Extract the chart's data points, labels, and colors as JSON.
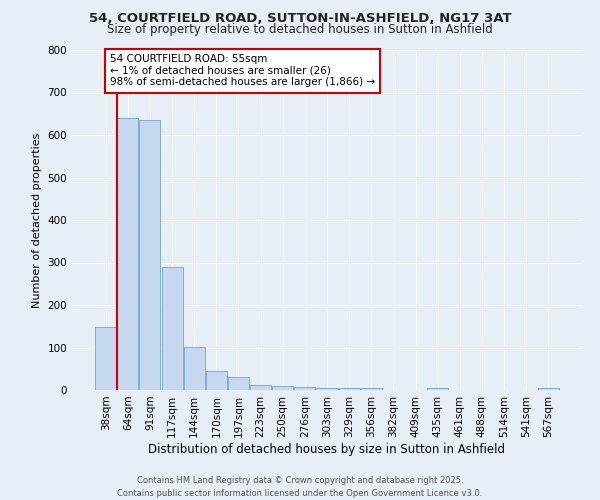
{
  "title1": "54, COURTFIELD ROAD, SUTTON-IN-ASHFIELD, NG17 3AT",
  "title2": "Size of property relative to detached houses in Sutton in Ashfield",
  "xlabel": "Distribution of detached houses by size in Sutton in Ashfield",
  "ylabel": "Number of detached properties",
  "categories": [
    "38sqm",
    "64sqm",
    "91sqm",
    "117sqm",
    "144sqm",
    "170sqm",
    "197sqm",
    "223sqm",
    "250sqm",
    "276sqm",
    "303sqm",
    "329sqm",
    "356sqm",
    "382sqm",
    "409sqm",
    "435sqm",
    "461sqm",
    "488sqm",
    "514sqm",
    "541sqm",
    "567sqm"
  ],
  "values": [
    148,
    640,
    635,
    290,
    102,
    45,
    30,
    12,
    10,
    7,
    5,
    5,
    4,
    0,
    0,
    5,
    0,
    0,
    0,
    0,
    5
  ],
  "bar_color": "#c5d8ef",
  "bar_edge_color": "#7bafd4",
  "highlight_color": "#cc0000",
  "annotation_text": "54 COURTFIELD ROAD: 55sqm\n← 1% of detached houses are smaller (26)\n98% of semi-detached houses are larger (1,866) →",
  "annotation_box_color": "#ffffff",
  "annotation_box_edge": "#cc0000",
  "background_color": "#e8eef5",
  "grid_color": "#ffffff",
  "ylim": [
    0,
    800
  ],
  "title1_fontsize": 9.5,
  "title2_fontsize": 8.5,
  "xlabel_fontsize": 8.5,
  "ylabel_fontsize": 8.0,
  "tick_fontsize": 7.5,
  "ann_fontsize": 7.5,
  "footer": "Contains HM Land Registry data © Crown copyright and database right 2025.\nContains public sector information licensed under the Open Government Licence v3.0."
}
